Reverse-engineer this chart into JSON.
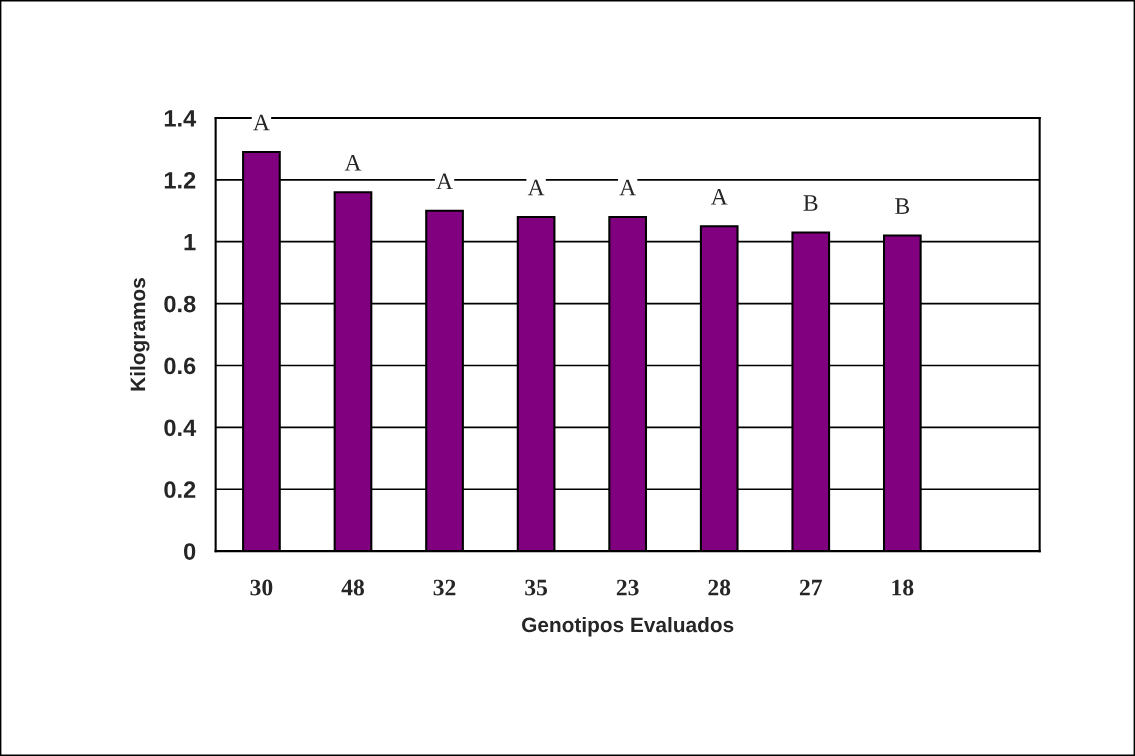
{
  "chart_data": {
    "type": "bar",
    "xlabel": "Genotipos Evaluados",
    "ylabel": "Kilogramos",
    "categories": [
      "30",
      "48",
      "32",
      "35",
      "23",
      "28",
      "27",
      "18",
      null
    ],
    "values": [
      1.29,
      1.16,
      1.1,
      1.08,
      1.08,
      1.05,
      1.03,
      1.02,
      null
    ],
    "color": "#800080",
    "ylim": [
      0,
      1.4
    ],
    "yticks": [
      0,
      0.2,
      0.4,
      0.6,
      0.8,
      1,
      1.2,
      1.4
    ],
    "grid": "y",
    "legend": false,
    "annotations": [
      {
        "text": "A",
        "x": "30",
        "y": 1.29
      },
      {
        "text": "A",
        "x": "48",
        "y": 1.16
      },
      {
        "text": "A",
        "x": "32",
        "y": 1.1
      },
      {
        "text": "A",
        "x": "35",
        "y": 1.08
      },
      {
        "text": "A",
        "x": "23",
        "y": 1.08
      },
      {
        "text": "A",
        "x": "28",
        "y": 1.05
      },
      {
        "text": "B",
        "x": "27",
        "y": 1.03
      },
      {
        "text": "B",
        "x": "18",
        "y": 1.02
      }
    ]
  }
}
